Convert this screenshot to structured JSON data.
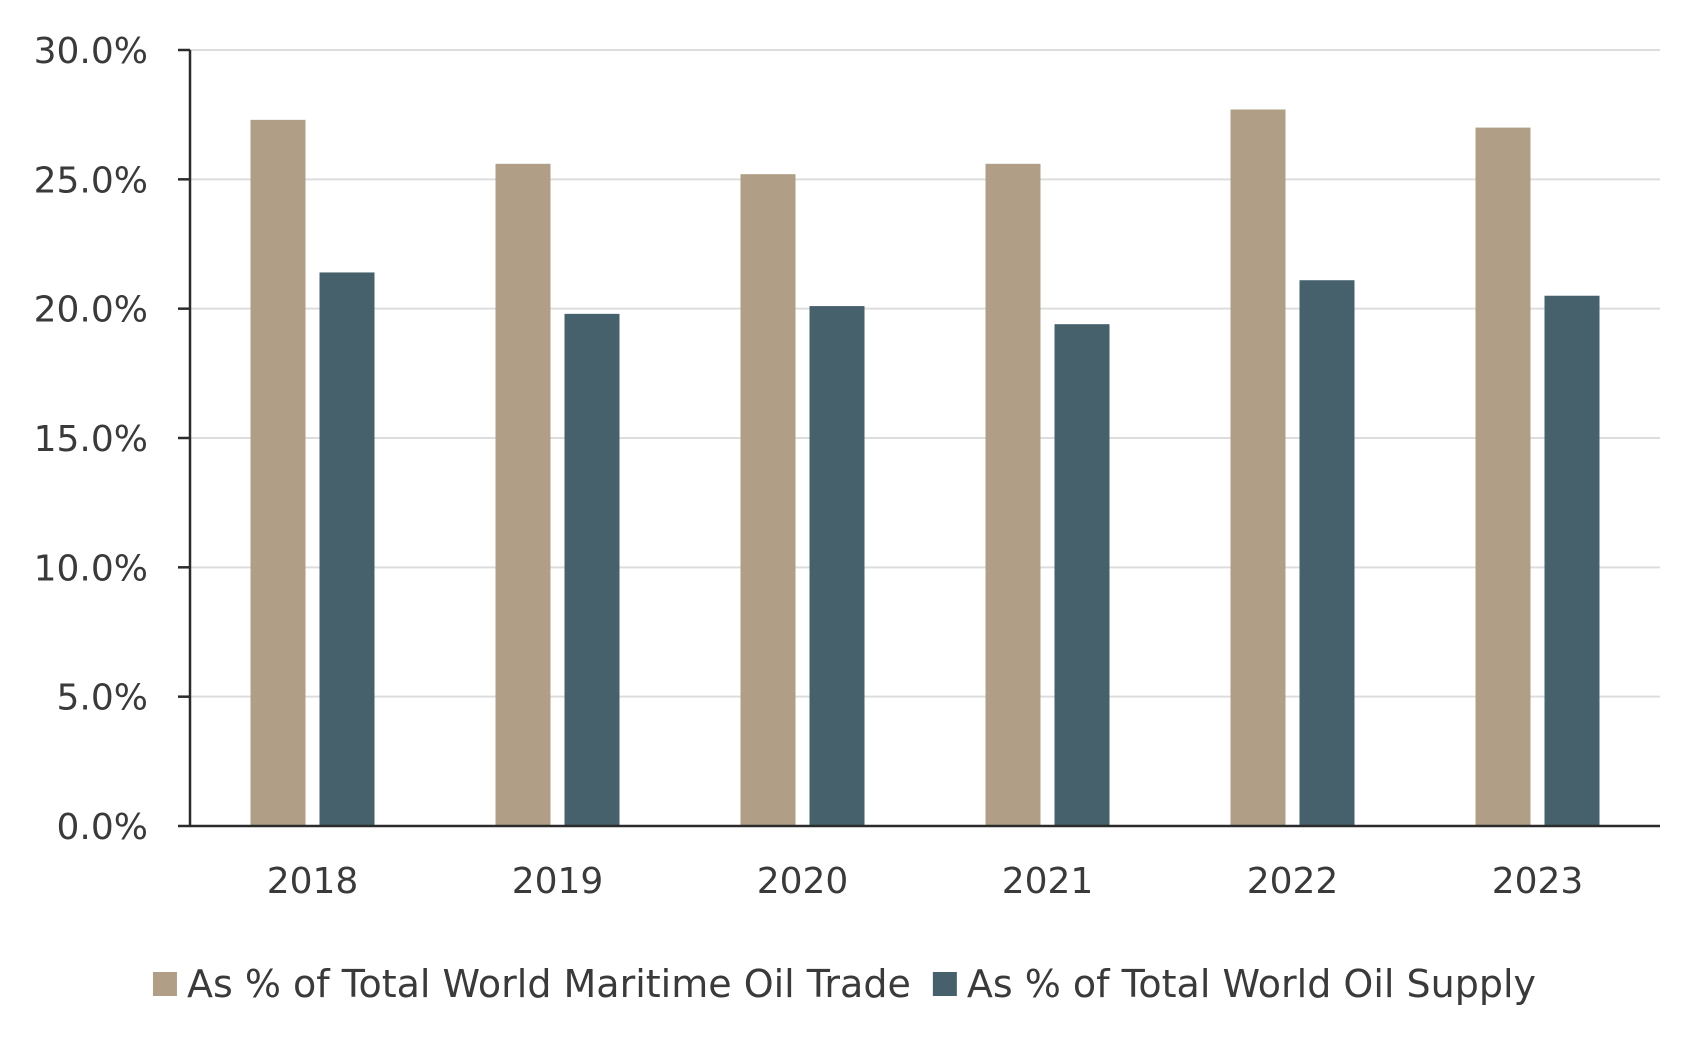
{
  "chart_data": {
    "type": "bar",
    "categories": [
      "2018",
      "2019",
      "2020",
      "2021",
      "2022",
      "2023"
    ],
    "series": [
      {
        "name": "As % of Total World Maritime Oil Trade",
        "color": "#b09e86",
        "values": [
          27.3,
          25.6,
          25.2,
          25.6,
          27.7,
          27.0
        ]
      },
      {
        "name": "As % of Total World Oil Supply",
        "color": "#46616c",
        "values": [
          21.4,
          19.8,
          20.1,
          19.4,
          21.1,
          20.5
        ]
      }
    ],
    "yticks": [
      "0.0%",
      "5.0%",
      "10.0%",
      "15.0%",
      "20.0%",
      "25.0%",
      "30.0%"
    ],
    "ylim": [
      0,
      30
    ],
    "grid": true,
    "legend_position": "bottom"
  }
}
